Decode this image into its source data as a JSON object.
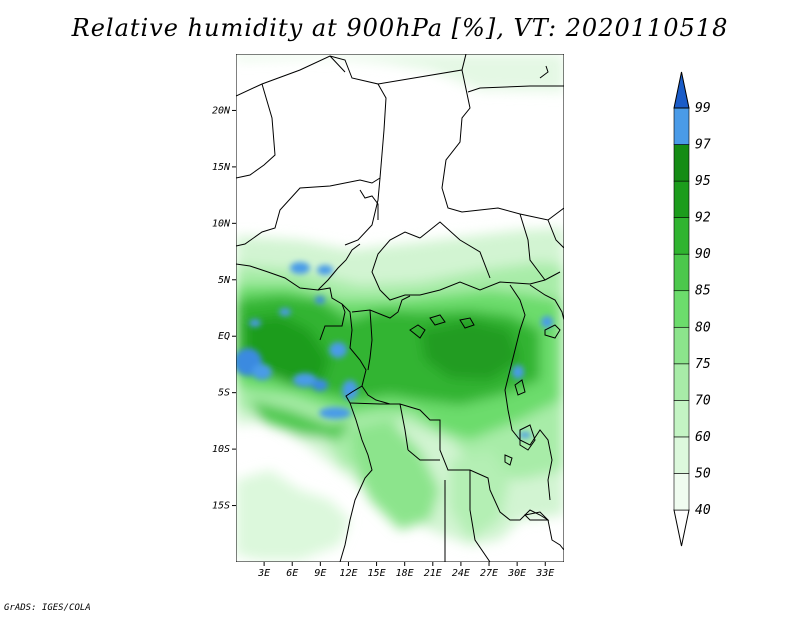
{
  "title": "Relative humidity at 900hPa [%], VT: 2020110518",
  "credit": "GrADS: IGES/COLA",
  "map": {
    "lon_range": [
      0,
      35
    ],
    "lat_range": [
      -20,
      25
    ],
    "lat_ticks": [
      {
        "value": 20,
        "label": "20N"
      },
      {
        "value": 15,
        "label": "15N"
      },
      {
        "value": 10,
        "label": "10N"
      },
      {
        "value": 5,
        "label": "5N"
      },
      {
        "value": 0,
        "label": "EQ"
      },
      {
        "value": -5,
        "label": "5S"
      },
      {
        "value": -10,
        "label": "10S"
      },
      {
        "value": -15,
        "label": "15S"
      }
    ],
    "lon_ticks": [
      {
        "value": 3,
        "label": "3E"
      },
      {
        "value": 6,
        "label": "6E"
      },
      {
        "value": 9,
        "label": "9E"
      },
      {
        "value": 12,
        "label": "12E"
      },
      {
        "value": 15,
        "label": "15E"
      },
      {
        "value": 18,
        "label": "18E"
      },
      {
        "value": 21,
        "label": "21E"
      },
      {
        "value": 24,
        "label": "24E"
      },
      {
        "value": 27,
        "label": "27E"
      },
      {
        "value": 30,
        "label": "30E"
      },
      {
        "value": 33,
        "label": "33E"
      }
    ]
  },
  "colorbar": {
    "levels": [
      {
        "label": "40",
        "color": "#f0fcf0"
      },
      {
        "label": "50",
        "color": "#dcf8dc"
      },
      {
        "label": "60",
        "color": "#c4f4c4"
      },
      {
        "label": "70",
        "color": "#a8eca8"
      },
      {
        "label": "75",
        "color": "#8ce48c"
      },
      {
        "label": "80",
        "color": "#6cdc6c"
      },
      {
        "label": "85",
        "color": "#4cc84c"
      },
      {
        "label": "90",
        "color": "#30b430"
      },
      {
        "label": "92",
        "color": "#1c9c1c"
      },
      {
        "label": "95",
        "color": "#148c14"
      },
      {
        "label": "97",
        "color": "#4a9be8"
      },
      {
        "label": "99",
        "color": "#2a72d8"
      }
    ],
    "over_color": "#1a5cc8",
    "under_color": "#ffffff"
  }
}
